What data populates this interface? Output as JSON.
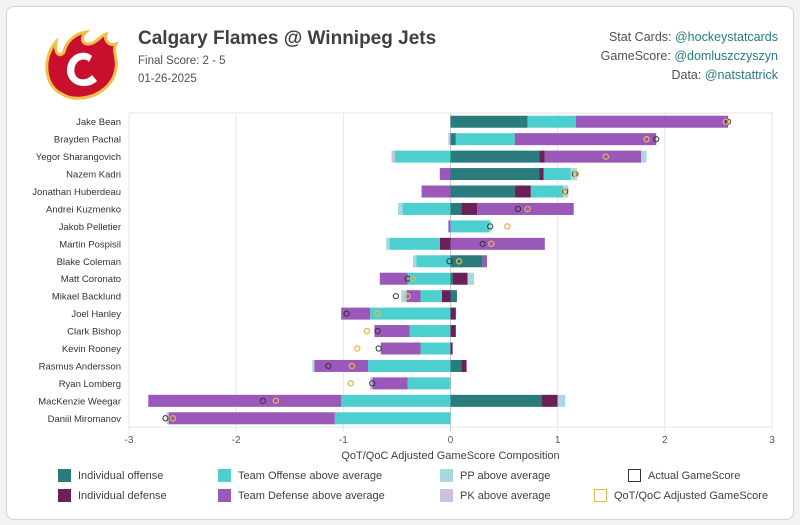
{
  "header": {
    "title": "Calgary Flames @ Winnipeg Jets",
    "final_score": "Final Score: 2 - 5",
    "date": "01-26-2025"
  },
  "credits": {
    "stat_cards_label": "Stat Cards:",
    "stat_cards_handle": "@hockeystatcards",
    "gamescore_label": "GameScore:",
    "gamescore_handle": "@domluszczyszyn",
    "data_label": "Data:",
    "data_handle": "@natstattrick"
  },
  "colors": {
    "ind_off": "#2a7b7b",
    "ind_def": "#6b2157",
    "team_off": "#4ecfcf",
    "team_def": "#9a58b8",
    "pp": "#a9d9df",
    "pk": "#c6c3dc",
    "actual": "#333333",
    "adjusted": "#e9b44c",
    "logo_red": "#c8102e",
    "logo_gold": "#f1be48"
  },
  "chart_data": {
    "type": "bar",
    "xlabel": "QoT/QoC Adjusted GameScore Composition",
    "xlim": [
      -3,
      3
    ],
    "xticks": [
      -3,
      -2,
      -1,
      0,
      1,
      2,
      3
    ],
    "grid": true,
    "players": [
      {
        "name": "Jake Bean",
        "ind_off": 0.72,
        "ind_def": 0,
        "team_off": 0.45,
        "team_def": 1.42,
        "pp": 0,
        "pk": 0,
        "actual": 2.59,
        "adjusted": 2.57
      },
      {
        "name": "Brayden Pachal",
        "ind_off": 0.05,
        "ind_def": 0,
        "team_off": 0.55,
        "team_def": 1.32,
        "pp": 0,
        "pk": -0.02,
        "actual": 1.92,
        "adjusted": 1.83
      },
      {
        "name": "Yegor Sharangovich",
        "ind_off": 0.83,
        "ind_def": 0.05,
        "team_off": -0.52,
        "team_def": 0.9,
        "pp": 0.05,
        "pk": -0.03,
        "actual": 1.45,
        "adjusted": 1.45
      },
      {
        "name": "Nazem Kadri",
        "ind_off": 0.83,
        "ind_def": 0.04,
        "team_off": 0.25,
        "team_def": -0.1,
        "pp": 0.06,
        "pk": 0,
        "actual": 1.16,
        "adjusted": 1.17
      },
      {
        "name": "Jonathan Huberdeau",
        "ind_off": 0.6,
        "ind_def": 0.15,
        "team_off": 0.3,
        "team_def": -0.27,
        "pp": 0.05,
        "pk": 0,
        "actual": 1.07,
        "adjusted": 1.06
      },
      {
        "name": "Andrei Kuzmenko",
        "ind_off": 0.1,
        "ind_def": 0.15,
        "team_off": -0.45,
        "team_def": 0.9,
        "pp": -0.04,
        "pk": 0,
        "actual": 0.63,
        "adjusted": 0.72
      },
      {
        "name": "Jakob Pelletier",
        "ind_off": 0,
        "ind_def": 0,
        "team_off": 0.36,
        "team_def": -0.02,
        "pp": 0.02,
        "pk": 0,
        "actual": 0.37,
        "adjusted": 0.53
      },
      {
        "name": "Martin Pospisil",
        "ind_off": 0,
        "ind_def": -0.1,
        "team_off": -0.47,
        "team_def": 0.88,
        "pp": -0.03,
        "pk": 0,
        "actual": 0.3,
        "adjusted": 0.38
      },
      {
        "name": "Blake Coleman",
        "ind_off": 0.3,
        "ind_def": 0,
        "team_off": -0.32,
        "team_def": 0.04,
        "pp": -0.03,
        "pk": 0,
        "actual": -0.01,
        "adjusted": 0.08
      },
      {
        "name": "Matt Coronato",
        "ind_off": 0.02,
        "ind_def": 0.14,
        "team_off": -0.4,
        "team_def": -0.26,
        "pp": 0.06,
        "pk": 0,
        "actual": -0.4,
        "adjusted": -0.35
      },
      {
        "name": "Mikael Backlund",
        "ind_off": 0.06,
        "ind_def": -0.08,
        "team_off": -0.2,
        "team_def": -0.13,
        "pp": -0.05,
        "pk": 0,
        "actual": -0.51,
        "adjusted": -0.4
      },
      {
        "name": "Joel Hanley",
        "ind_off": 0,
        "ind_def": 0.05,
        "team_off": -0.75,
        "team_def": -0.27,
        "pp": 0,
        "pk": 0,
        "actual": -0.97,
        "adjusted": -0.68
      },
      {
        "name": "Clark Bishop",
        "ind_off": 0,
        "ind_def": 0.05,
        "team_off": -0.38,
        "team_def": -0.33,
        "pp": 0,
        "pk": 0,
        "actual": -0.68,
        "adjusted": -0.78
      },
      {
        "name": "Kevin Rooney",
        "ind_off": 0,
        "ind_def": 0.02,
        "team_off": -0.28,
        "team_def": -0.37,
        "pp": 0,
        "pk": 0,
        "actual": -0.67,
        "adjusted": -0.87
      },
      {
        "name": "Rasmus Andersson",
        "ind_off": 0.1,
        "ind_def": 0.05,
        "team_off": -0.77,
        "team_def": -0.5,
        "pp": -0.02,
        "pk": 0,
        "actual": -1.14,
        "adjusted": -0.92
      },
      {
        "name": "Ryan Lomberg",
        "ind_off": 0,
        "ind_def": 0,
        "team_off": -0.4,
        "team_def": -0.33,
        "pp": 0,
        "pk": -0.02,
        "actual": -0.73,
        "adjusted": -0.93
      },
      {
        "name": "MacKenzie Weegar",
        "ind_off": 0.85,
        "ind_def": 0.15,
        "team_off": -1.02,
        "team_def": -1.8,
        "pp": 0.07,
        "pk": 0,
        "actual": -1.75,
        "adjusted": -1.63
      },
      {
        "name": "Daniil Miromanov",
        "ind_off": 0,
        "ind_def": 0,
        "team_off": -1.08,
        "team_def": -1.55,
        "pp": 0,
        "pk": -0.02,
        "actual": -2.66,
        "adjusted": -2.59
      }
    ]
  },
  "legend": {
    "ind_off": "Individual offense",
    "ind_def": "Individual defense",
    "team_off": "Team Offense above average",
    "team_def": "Team Defense above average",
    "pp": "PP above average",
    "pk": "PK above average",
    "actual": "Actual GameScore",
    "adjusted": "QoT/QoC Adjusted GameScore"
  }
}
